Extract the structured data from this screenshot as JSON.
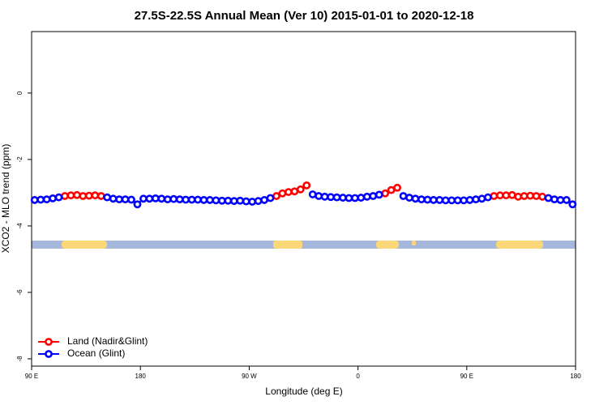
{
  "chart_data": {
    "type": "line",
    "title": "27.5S-22.5S Annual Mean (Ver 10)   2015-01-01 to 2020-12-18",
    "x_label": "Longitude (deg E)",
    "y_label": "XCO2 - MLO trend (ppm)",
    "xlim": [
      90,
      540
    ],
    "ylim": [
      -8.22,
      1.85
    ],
    "xticks": [
      {
        "value": 90,
        "label": "90 E"
      },
      180,
      {
        "value": 270,
        "label": "90 W"
      },
      {
        "value": 360,
        "label": "0"
      },
      {
        "value": 450,
        "label": "90 E"
      },
      {
        "value": 540,
        "label": "180"
      }
    ],
    "yticks": [
      0,
      -2,
      -4,
      -6,
      -8
    ],
    "legend": "bottom-left",
    "x": [
      92.5,
      97.5,
      102.5,
      107.5,
      112.5,
      117.5,
      122.5,
      127.5,
      132.5,
      137.5,
      142.5,
      147.5,
      152.5,
      157.5,
      162.5,
      167.5,
      172.5,
      177.5,
      182.5,
      187.5,
      192.5,
      197.5,
      202.5,
      207.5,
      212.5,
      217.5,
      222.5,
      227.5,
      232.5,
      237.5,
      242.5,
      247.5,
      252.5,
      257.5,
      262.5,
      267.5,
      272.5,
      277.5,
      282.5,
      287.5,
      292.5,
      297.5,
      302.5,
      307.5,
      312.5,
      317.5,
      322.5,
      327.5,
      332.5,
      337.5,
      342.5,
      347.5,
      352.5,
      357.5,
      362.5,
      367.5,
      372.5,
      377.5,
      382.5,
      387.5,
      392.5,
      397.5,
      402.5,
      407.5,
      412.5,
      417.5,
      422.5,
      427.5,
      432.5,
      437.5,
      442.5,
      447.5,
      452.5,
      457.5,
      462.5,
      467.5,
      472.5,
      477.5,
      482.5,
      487.5,
      492.5,
      497.5,
      502.5,
      507.5,
      512.5,
      517.5,
      522.5,
      527.5,
      532.5,
      537.5
    ],
    "series": [
      {
        "name": "Land (Nadir&Glint)",
        "color": "#ff0000",
        "values": [
          null,
          null,
          null,
          null,
          null,
          -3.1,
          -3.08,
          -3.07,
          -3.1,
          -3.09,
          -3.08,
          -3.1,
          null,
          null,
          null,
          null,
          null,
          null,
          null,
          null,
          null,
          null,
          null,
          null,
          null,
          null,
          null,
          null,
          null,
          null,
          null,
          null,
          null,
          null,
          null,
          null,
          null,
          null,
          null,
          null,
          -3.1,
          -3.02,
          -2.98,
          -2.96,
          -2.9,
          -2.78,
          null,
          null,
          null,
          null,
          null,
          null,
          null,
          null,
          null,
          null,
          null,
          null,
          -3.02,
          -2.92,
          -2.85,
          null,
          null,
          null,
          null,
          null,
          null,
          null,
          null,
          null,
          null,
          null,
          null,
          null,
          null,
          null,
          -3.1,
          -3.08,
          -3.08,
          -3.07,
          -3.12,
          -3.1,
          -3.09,
          -3.1,
          -3.12,
          null,
          null,
          null,
          null,
          null
        ]
      },
      {
        "name": "Ocean (Glint)",
        "color": "#0000ff",
        "values": [
          -3.22,
          -3.21,
          -3.2,
          -3.17,
          -3.14,
          null,
          null,
          null,
          null,
          null,
          null,
          null,
          -3.14,
          -3.18,
          -3.2,
          -3.2,
          -3.21,
          -3.35,
          -3.18,
          -3.18,
          -3.17,
          -3.18,
          -3.2,
          -3.19,
          -3.2,
          -3.21,
          -3.21,
          -3.21,
          -3.22,
          -3.22,
          -3.23,
          -3.24,
          -3.24,
          -3.25,
          -3.24,
          -3.26,
          -3.27,
          -3.25,
          -3.22,
          -3.16,
          null,
          null,
          null,
          null,
          null,
          null,
          -3.05,
          -3.1,
          -3.12,
          -3.13,
          -3.14,
          -3.15,
          -3.16,
          -3.16,
          -3.15,
          -3.12,
          -3.1,
          -3.06,
          null,
          null,
          null,
          -3.1,
          -3.15,
          -3.18,
          -3.2,
          -3.21,
          -3.22,
          -3.22,
          -3.23,
          -3.23,
          -3.23,
          -3.23,
          -3.22,
          -3.2,
          -3.18,
          -3.14,
          null,
          null,
          null,
          null,
          null,
          null,
          null,
          null,
          null,
          -3.16,
          -3.2,
          -3.22,
          -3.22,
          -3.35
        ]
      }
    ]
  }
}
